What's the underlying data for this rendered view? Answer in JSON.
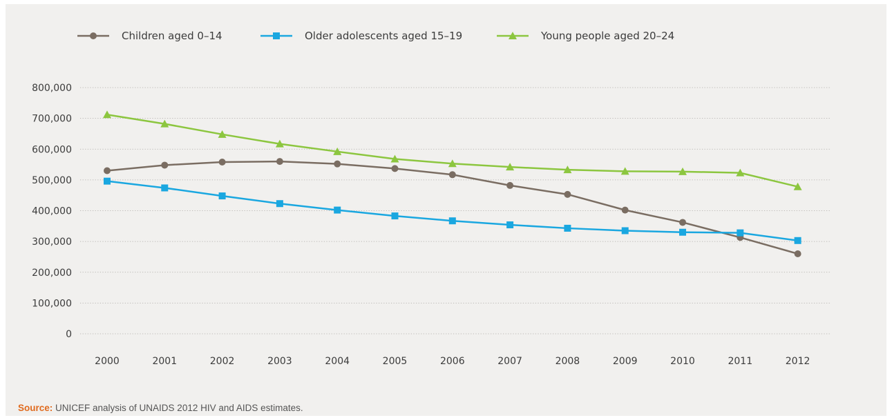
{
  "chart_data": {
    "type": "line",
    "x": [
      "2000",
      "2001",
      "2002",
      "2003",
      "2004",
      "2005",
      "2006",
      "2007",
      "2008",
      "2009",
      "2010",
      "2011",
      "2012"
    ],
    "series": [
      {
        "name": "Children aged 0–14",
        "color": "#7a6d62",
        "marker": "circle",
        "values": [
          530000,
          548000,
          558000,
          560000,
          552000,
          537000,
          517000,
          482000,
          453000,
          402000,
          362000,
          313000,
          260000
        ]
      },
      {
        "name": "Older adolescents aged 15–19",
        "color": "#1aa7e0",
        "marker": "square",
        "values": [
          496000,
          474000,
          448000,
          423000,
          402000,
          383000,
          367000,
          354000,
          343000,
          335000,
          330000,
          328000,
          303000
        ]
      },
      {
        "name": "Young people aged 20–24",
        "color": "#8cc63f",
        "marker": "triangle",
        "values": [
          712000,
          682000,
          648000,
          617000,
          592000,
          568000,
          553000,
          542000,
          533000,
          528000,
          527000,
          523000,
          478000
        ]
      }
    ],
    "yticks": [
      "0",
      "100,000",
      "200,000",
      "300,000",
      "400,000",
      "500,000",
      "600,000",
      "700,000",
      "800,000"
    ],
    "ylim": [
      0,
      800000
    ],
    "grid": "horizontal dotted",
    "legend": "top-left"
  },
  "source": {
    "label": "Source:",
    "text": " UNICEF analysis of UNAIDS 2012 HIV and AIDS estimates."
  }
}
